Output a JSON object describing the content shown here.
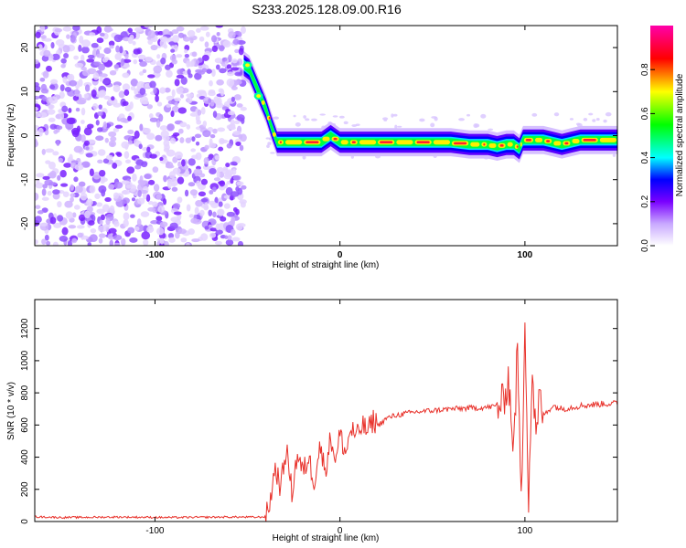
{
  "title": "S233.2025.128.09.00.R16",
  "chart_data": [
    {
      "type": "heatmap",
      "title": "",
      "xlabel": "Height of straight line (km)",
      "ylabel": "Frequency (Hz)",
      "xlim": [
        -165,
        150
      ],
      "ylim": [
        -25,
        25
      ],
      "x_ticks": [
        -100,
        0,
        100
      ],
      "y_ticks": [
        20,
        10,
        0,
        -10,
        -20
      ],
      "colorbar": {
        "label": "Normalized spectral amplitude",
        "range": [
          0,
          1
        ],
        "ticks": [
          0.0,
          0.2,
          0.4,
          0.6,
          0.8
        ],
        "colors": [
          "#ffffff",
          "#c8a8ff",
          "#7a00ff",
          "#0000ff",
          "#00ffff",
          "#00ff00",
          "#ffff00",
          "#ff0000",
          "#ff00aa"
        ]
      },
      "noise_region": {
        "x_range": [
          -165,
          -52
        ],
        "amplitude_range": [
          0.0,
          0.25
        ]
      },
      "ridge": {
        "x": [
          -52,
          -49,
          -46,
          -43,
          -40,
          -37,
          -34,
          -30,
          -20,
          -10,
          -5,
          0,
          5,
          10,
          20,
          30,
          40,
          50,
          60,
          70,
          76,
          80,
          85,
          90,
          94,
          97,
          99,
          105,
          110,
          115,
          120,
          125,
          130,
          140,
          150
        ],
        "freq": [
          16,
          15,
          12,
          9,
          6,
          2,
          -1.5,
          -1.5,
          -1.5,
          -1.5,
          0,
          -1.5,
          -1.5,
          -1.5,
          -1.5,
          -1.5,
          -1.5,
          -1.5,
          -1.5,
          -2,
          -2,
          -2,
          -2.5,
          -2,
          -2,
          -3,
          -1,
          -1,
          -1,
          -1.5,
          -2,
          -1.5,
          -1,
          -1,
          -1
        ]
      }
    },
    {
      "type": "line",
      "title": "",
      "xlabel": "Height of straight line (km)",
      "ylabel": "SNR (10 * v/v)",
      "xlim": [
        -165,
        150
      ],
      "ylim": [
        0,
        1380
      ],
      "x_ticks": [
        -100,
        0,
        100
      ],
      "y_ticks": [
        0,
        200,
        400,
        600,
        800,
        1000,
        1200
      ],
      "series": [
        {
          "color": "#e8312a",
          "x": [
            -165,
            -150,
            -120,
            -90,
            -60,
            -45,
            -40,
            -38,
            -35,
            -32,
            -29,
            -26,
            -23,
            -20,
            -17,
            -14,
            -11,
            -8,
            -5,
            -2,
            0,
            3,
            6,
            9,
            12,
            15,
            18,
            21,
            25,
            30,
            35,
            40,
            50,
            60,
            70,
            80,
            85,
            88,
            91,
            94,
            96,
            98,
            100,
            102,
            104,
            106,
            108,
            110,
            115,
            120,
            130,
            140,
            150
          ],
          "y": [
            30,
            25,
            28,
            25,
            28,
            27,
            30,
            110,
            340,
            210,
            460,
            180,
            420,
            300,
            400,
            250,
            470,
            320,
            520,
            380,
            550,
            420,
            580,
            520,
            600,
            560,
            630,
            600,
            640,
            660,
            670,
            680,
            690,
            700,
            705,
            710,
            720,
            730,
            900,
            450,
            1100,
            80,
            1300,
            150,
            950,
            500,
            780,
            660,
            720,
            700,
            720,
            730,
            735
          ]
        }
      ]
    }
  ]
}
